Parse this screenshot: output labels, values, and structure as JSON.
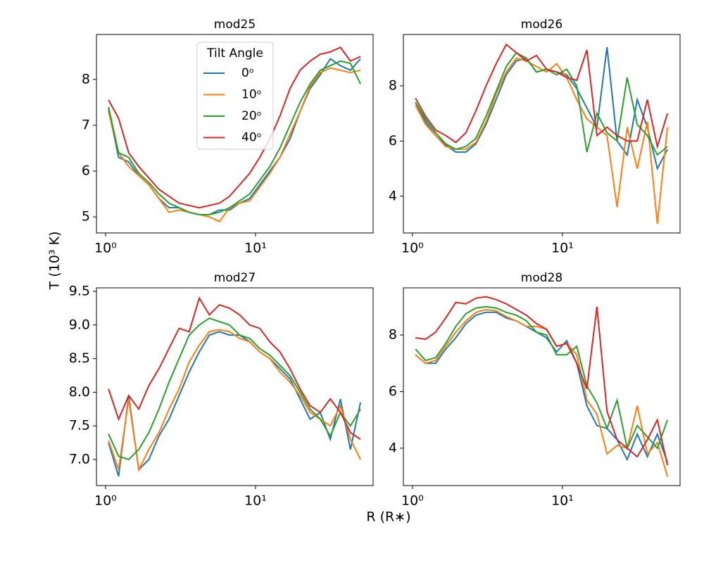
{
  "x_label": "R (R∗)",
  "y_label": "T (10³ K)",
  "chart_data": [
    {
      "type": "line",
      "title": "mod25",
      "xscale": "log",
      "xlim": [
        0.87,
        60.8
      ],
      "xticks": [
        {
          "value": 1,
          "label": "10⁰"
        },
        {
          "value": 10,
          "label": "10¹"
        }
      ],
      "ylim": [
        4.65,
        8.98
      ],
      "yticks": [
        5,
        6,
        7,
        8
      ],
      "legend": "upper center",
      "legend_title": "Tilt Angle",
      "x": [
        1.047,
        1.222,
        1.427,
        1.665,
        1.944,
        2.27,
        2.65,
        3.093,
        3.611,
        4.216,
        4.92,
        5.744,
        6.706,
        7.829,
        9.138,
        10.67,
        12.45,
        14.54,
        16.97,
        19.81,
        23.12,
        27.0,
        31.5,
        36.8,
        42.9,
        50.1
      ],
      "series": [
        {
          "name": "0ᵒ",
          "color": "#1f77b4",
          "values": [
            7.35,
            6.3,
            6.2,
            5.9,
            5.7,
            5.4,
            5.2,
            5.2,
            5.1,
            5.05,
            5.05,
            5.15,
            5.15,
            5.3,
            5.4,
            5.7,
            6.0,
            6.3,
            6.7,
            7.3,
            7.8,
            8.1,
            8.45,
            8.3,
            8.2,
            8.45
          ]
        },
        {
          "name": "10ᵒ",
          "color": "#ff7f0e",
          "values": [
            7.3,
            6.4,
            6.1,
            5.9,
            5.7,
            5.4,
            5.1,
            5.15,
            5.1,
            5.05,
            5.0,
            4.9,
            5.2,
            5.3,
            5.35,
            5.65,
            5.95,
            6.3,
            6.8,
            7.3,
            7.85,
            8.15,
            8.25,
            8.2,
            8.15,
            8.2
          ]
        },
        {
          "name": "20ᵒ",
          "color": "#2ca02c",
          "values": [
            7.4,
            6.4,
            6.3,
            5.95,
            5.75,
            5.5,
            5.3,
            5.2,
            5.1,
            5.05,
            5.05,
            5.1,
            5.2,
            5.35,
            5.5,
            5.8,
            6.1,
            6.5,
            7.0,
            7.5,
            7.9,
            8.2,
            8.3,
            8.4,
            8.35,
            7.9
          ]
        },
        {
          "name": "40ᵒ",
          "color": "#d62728",
          "values": [
            7.55,
            7.15,
            6.4,
            6.1,
            5.85,
            5.6,
            5.45,
            5.3,
            5.25,
            5.2,
            5.25,
            5.3,
            5.45,
            5.7,
            5.95,
            6.3,
            6.7,
            7.2,
            7.8,
            8.2,
            8.4,
            8.55,
            8.6,
            8.7,
            8.4,
            8.5
          ]
        }
      ]
    },
    {
      "type": "line",
      "title": "mod26",
      "xscale": "log",
      "xlim": [
        0.87,
        60.8
      ],
      "xticks": [
        {
          "value": 1,
          "label": "10⁰"
        },
        {
          "value": 10,
          "label": "10¹"
        }
      ],
      "ylim": [
        2.67,
        9.86
      ],
      "yticks": [
        4,
        6,
        8
      ],
      "x": [
        1.047,
        1.222,
        1.427,
        1.665,
        1.944,
        2.27,
        2.65,
        3.093,
        3.611,
        4.216,
        4.92,
        5.744,
        6.706,
        7.829,
        9.138,
        10.67,
        12.45,
        14.54,
        16.97,
        19.81,
        23.12,
        27.0,
        31.5,
        36.8,
        42.9,
        50.1
      ],
      "series": [
        {
          "color": "#1f77b4",
          "values": [
            7.4,
            6.7,
            6.2,
            5.85,
            5.6,
            5.6,
            5.9,
            6.6,
            7.5,
            8.4,
            8.9,
            9.0,
            8.5,
            8.6,
            8.5,
            8.4,
            7.9,
            7.2,
            6.5,
            9.4,
            6.0,
            5.5,
            7.5,
            6.5,
            5.0,
            5.7
          ]
        },
        {
          "color": "#ff7f0e",
          "values": [
            7.3,
            6.6,
            6.2,
            5.8,
            5.7,
            5.7,
            5.95,
            6.7,
            7.7,
            8.5,
            9.0,
            8.9,
            8.7,
            8.5,
            8.8,
            8.3,
            7.5,
            6.8,
            6.5,
            6.2,
            3.6,
            6.5,
            5.0,
            6.7,
            3.0,
            6.5
          ]
        },
        {
          "color": "#2ca02c",
          "values": [
            7.4,
            6.8,
            6.3,
            5.9,
            5.7,
            5.8,
            6.1,
            6.9,
            7.8,
            8.7,
            9.2,
            9.0,
            8.5,
            8.6,
            8.4,
            8.6,
            8.0,
            5.6,
            7.0,
            6.3,
            6.0,
            8.3,
            6.6,
            6.2,
            5.5,
            5.8
          ]
        },
        {
          "color": "#d62728",
          "values": [
            7.55,
            6.9,
            6.4,
            6.2,
            5.95,
            6.3,
            7.1,
            8.0,
            8.8,
            9.5,
            9.2,
            8.9,
            9.1,
            8.6,
            8.5,
            8.3,
            8.2,
            9.3,
            6.2,
            6.5,
            6.2,
            6.0,
            6.0,
            7.5,
            5.8,
            7.0
          ]
        }
      ]
    },
    {
      "type": "line",
      "title": "mod27",
      "xscale": "log",
      "xlim": [
        0.87,
        60.8
      ],
      "xticks": [
        {
          "value": 1,
          "label": "10⁰"
        },
        {
          "value": 10,
          "label": "10¹"
        }
      ],
      "ylim": [
        6.613,
        9.552
      ],
      "yticks": [
        {
          "value": 7,
          "label": "7.0"
        },
        7.5,
        {
          "value": 8,
          "label": "8.0"
        },
        8.5,
        {
          "value": 9,
          "label": "9.0"
        },
        9.5
      ],
      "x": [
        1.047,
        1.222,
        1.427,
        1.665,
        1.944,
        2.27,
        2.65,
        3.093,
        3.611,
        4.216,
        4.92,
        5.744,
        6.706,
        7.829,
        9.138,
        10.67,
        12.45,
        14.54,
        16.97,
        19.81,
        23.12,
        27.0,
        31.5,
        36.8,
        42.9,
        50.1
      ],
      "series": [
        {
          "color": "#1f77b4",
          "values": [
            7.25,
            6.75,
            7.95,
            6.85,
            7.0,
            7.35,
            7.6,
            7.95,
            8.3,
            8.6,
            8.85,
            8.9,
            8.85,
            8.85,
            8.75,
            8.6,
            8.5,
            8.35,
            8.2,
            7.9,
            7.6,
            7.7,
            7.3,
            7.9,
            7.15,
            7.85
          ]
        },
        {
          "color": "#ff7f0e",
          "values": [
            7.28,
            6.85,
            7.9,
            6.85,
            7.15,
            7.4,
            7.75,
            8.05,
            8.45,
            8.7,
            8.9,
            8.93,
            8.9,
            8.8,
            8.75,
            8.6,
            8.5,
            8.3,
            8.15,
            7.95,
            7.7,
            7.6,
            7.5,
            7.8,
            7.3,
            7.0
          ]
        },
        {
          "color": "#2ca02c",
          "values": [
            7.38,
            7.05,
            7.0,
            7.15,
            7.4,
            7.75,
            8.15,
            8.5,
            8.85,
            9.0,
            9.1,
            9.05,
            9.0,
            8.85,
            8.8,
            8.65,
            8.55,
            8.4,
            8.25,
            8.0,
            7.75,
            7.6,
            7.35,
            7.7,
            7.5,
            7.75
          ]
        },
        {
          "color": "#d62728",
          "values": [
            8.05,
            7.6,
            7.95,
            7.75,
            8.1,
            8.35,
            8.65,
            8.95,
            8.9,
            9.4,
            9.15,
            9.3,
            9.25,
            9.15,
            9.0,
            8.95,
            8.75,
            8.6,
            8.35,
            8.05,
            7.8,
            7.7,
            7.9,
            7.7,
            7.4,
            7.3
          ]
        }
      ]
    },
    {
      "type": "line",
      "title": "mod28",
      "xscale": "log",
      "xlim": [
        0.87,
        60.8
      ],
      "xticks": [
        {
          "value": 1,
          "label": "10⁰"
        },
        {
          "value": 10,
          "label": "10¹"
        }
      ],
      "ylim": [
        2.68,
        9.665
      ],
      "yticks": [
        4,
        6,
        8
      ],
      "x": [
        1.047,
        1.222,
        1.427,
        1.665,
        1.944,
        2.27,
        2.65,
        3.093,
        3.611,
        4.216,
        4.92,
        5.744,
        6.706,
        7.829,
        9.138,
        10.67,
        12.45,
        14.54,
        16.97,
        19.81,
        23.12,
        27.0,
        31.5,
        36.8,
        42.9,
        50.1
      ],
      "series": [
        {
          "color": "#1f77b4",
          "values": [
            7.3,
            7.0,
            7.0,
            7.5,
            7.9,
            8.4,
            8.7,
            8.8,
            8.8,
            8.6,
            8.5,
            8.3,
            8.1,
            7.9,
            7.4,
            7.8,
            7.0,
            5.5,
            4.8,
            4.7,
            4.3,
            3.6,
            4.5,
            3.7,
            4.5,
            3.5
          ]
        },
        {
          "color": "#ff7f0e",
          "values": [
            7.3,
            7.0,
            7.1,
            7.6,
            8.1,
            8.5,
            8.8,
            8.9,
            8.85,
            8.65,
            8.5,
            8.3,
            8.3,
            8.2,
            7.6,
            7.7,
            7.3,
            5.7,
            5.2,
            3.8,
            4.1,
            4.0,
            5.5,
            3.8,
            4.2,
            3.0
          ]
        },
        {
          "color": "#2ca02c",
          "values": [
            7.5,
            7.1,
            7.2,
            7.7,
            8.3,
            8.75,
            8.95,
            9.0,
            8.95,
            8.8,
            8.7,
            8.5,
            8.1,
            8.0,
            7.3,
            7.3,
            7.6,
            6.2,
            5.6,
            4.7,
            5.7,
            4.0,
            4.8,
            4.4,
            4.0,
            5.0
          ]
        },
        {
          "color": "#d62728",
          "values": [
            7.9,
            7.85,
            8.1,
            8.6,
            9.15,
            9.1,
            9.3,
            9.35,
            9.25,
            9.1,
            8.9,
            8.7,
            8.4,
            8.2,
            7.6,
            7.7,
            7.0,
            6.1,
            9.0,
            5.3,
            4.3,
            4.0,
            3.7,
            4.3,
            5.0,
            3.4
          ]
        }
      ]
    }
  ]
}
